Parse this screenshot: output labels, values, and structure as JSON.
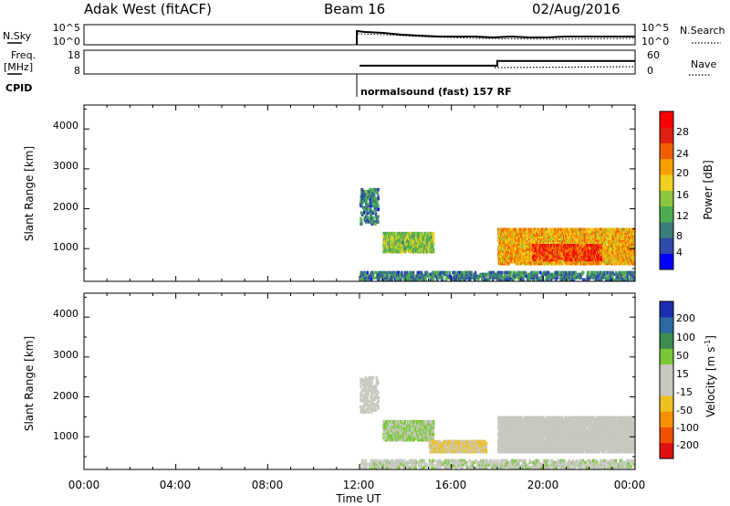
{
  "header": {
    "station": "Adak West (fitACF)",
    "beam": "Beam 16",
    "date": "02/Aug/2016"
  },
  "top_panels": {
    "nsky_label": "N.Sky",
    "nsky_ticks": [
      "10^5",
      "10^0"
    ],
    "nsearch_label": "N.Search",
    "nsearch_ticks": [
      "10^5",
      "10^0"
    ],
    "freq_label": "Freq.",
    "freq_unit": "[MHz]",
    "freq_ticks": [
      "18",
      "8"
    ],
    "nave_label": "Nave",
    "nave_ticks": [
      "60",
      "0"
    ],
    "cpid_label": "CPID",
    "cpid_text": "normalsound (fast) 157 RF"
  },
  "power_colorbar": {
    "label": "Power [dB]",
    "ticks": [
      "28",
      "24",
      "20",
      "16",
      "12",
      "8",
      "4"
    ],
    "colors": [
      "#0000ff",
      "#2f4aa8",
      "#3b7d7b",
      "#4cac52",
      "#8cc63f",
      "#f0d020",
      "#f8a000",
      "#f06000",
      "#e02010",
      "#ff0000"
    ]
  },
  "velocity_colorbar": {
    "label": "Velocity [m s",
    "label_sup": "-1",
    "label_end": "]",
    "ticks": [
      "200",
      "100",
      "50",
      "15",
      "-15",
      "-50",
      "-100",
      "-200"
    ],
    "colors": [
      "#1a2fb0",
      "#2a6aa0",
      "#3c8c50",
      "#78c838",
      "#c8c8c0",
      "#c8c8c0",
      "#f0c020",
      "#f89000",
      "#f05000",
      "#e01010"
    ]
  },
  "axes": {
    "ylabel": "Slant Range [km]",
    "yticks": [
      "4000",
      "3000",
      "2000",
      "1000"
    ],
    "xlabel": "Time UT",
    "xticks": [
      "00:00",
      "04:00",
      "08:00",
      "12:00",
      "16:00",
      "20:00",
      "00:00"
    ]
  },
  "chart_data": [
    {
      "type": "heatmap",
      "title": "",
      "quantity": "Power",
      "xlabel": "Time UT",
      "ylabel": "Slant Range [km]",
      "xlim_hours": [
        0,
        24
      ],
      "ylim_km": [
        180,
        4600
      ],
      "clim_db": [
        0,
        32
      ],
      "regions": [
        {
          "t_start": 12.0,
          "t_end": 24.0,
          "range_km": [
            200,
            420
          ],
          "power_db": 8
        },
        {
          "t_start": 12.0,
          "t_end": 12.8,
          "range_km": [
            1600,
            2500
          ],
          "power_db": 8
        },
        {
          "t_start": 13.0,
          "t_end": 15.2,
          "range_km": [
            900,
            1400
          ],
          "power_db": 14
        },
        {
          "t_start": 18.0,
          "t_end": 24.0,
          "range_km": [
            600,
            1500
          ],
          "power_db": 20
        },
        {
          "t_start": 19.5,
          "t_end": 22.5,
          "range_km": [
            700,
            1100
          ],
          "power_db": 26
        }
      ]
    },
    {
      "type": "heatmap",
      "title": "",
      "quantity": "Velocity",
      "xlabel": "Time UT",
      "ylabel": "Slant Range [km]",
      "xlim_hours": [
        0,
        24
      ],
      "ylim_km": [
        180,
        4600
      ],
      "clim_ms": [
        -200,
        200
      ],
      "regions": [
        {
          "t_start": 12.0,
          "t_end": 24.0,
          "range_km": [
            200,
            420
          ],
          "velocity_ms": 30
        },
        {
          "t_start": 12.0,
          "t_end": 12.8,
          "range_km": [
            1600,
            2500
          ],
          "velocity_ms": 0
        },
        {
          "t_start": 13.0,
          "t_end": 15.2,
          "range_km": [
            900,
            1400
          ],
          "velocity_ms": 40
        },
        {
          "t_start": 15.0,
          "t_end": 17.5,
          "range_km": [
            600,
            900
          ],
          "velocity_ms": -40
        },
        {
          "t_start": 18.0,
          "t_end": 24.0,
          "range_km": [
            600,
            1500
          ],
          "velocity_ms": 0
        }
      ]
    },
    {
      "type": "line",
      "title": "",
      "quantity": "Frequency and Nave",
      "series": [
        {
          "x_hours": [
            12.0,
            18.0,
            18.0,
            24.0
          ],
          "values": [
            11.5,
            11.5,
            13.5,
            13.5
          ]
        }
      ],
      "ylim": [
        8,
        18
      ]
    }
  ]
}
